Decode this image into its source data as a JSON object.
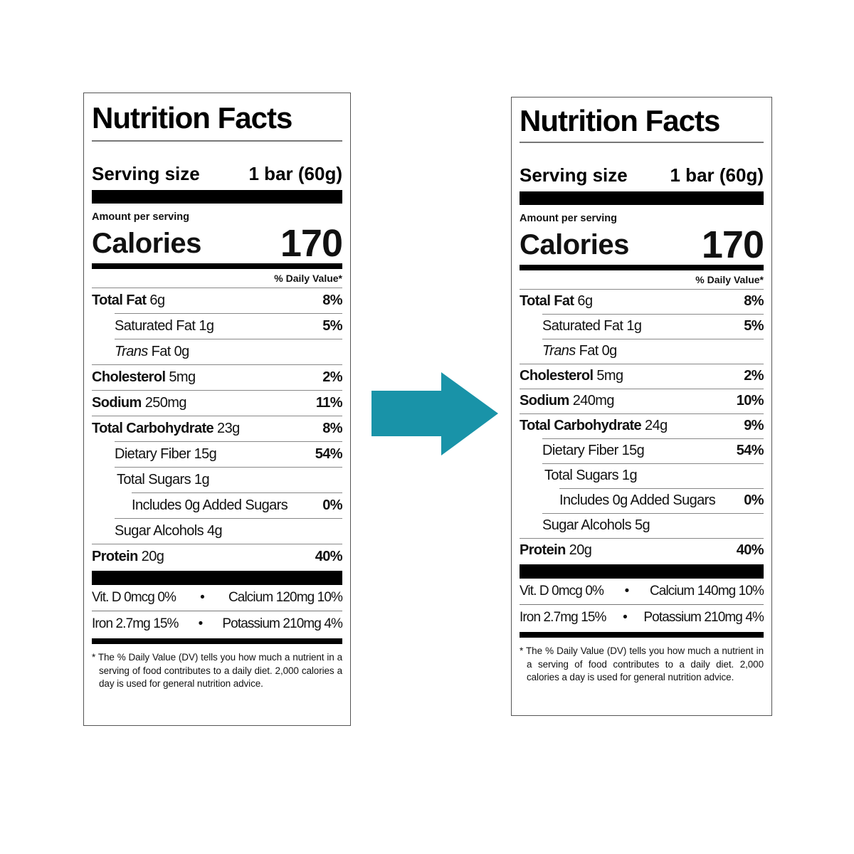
{
  "arrow": {
    "color": "#1993a8"
  },
  "labels": [
    {
      "title": "Nutrition Facts",
      "serving_label": "Serving size",
      "serving_value": "1 bar (60g)",
      "amount_per_serving": "Amount per serving",
      "calories_label": "Calories",
      "calories_value": "170",
      "daily_value_header": "% Daily Value*",
      "nutrients": [
        {
          "name": "Total Fat",
          "amount": "6g",
          "dv": "8%"
        },
        {
          "name": "Saturated Fat 1g",
          "dv": "5%"
        },
        {
          "name_italic": "Trans",
          "name": "Fat 0g",
          "dv": ""
        },
        {
          "name": "Cholesterol",
          "amount": "5mg",
          "dv": "2%"
        },
        {
          "name": "Sodium",
          "amount": "250mg",
          "dv": "11%"
        },
        {
          "name": "Total Carbohydrate",
          "amount": "23g",
          "dv": "8%"
        },
        {
          "name": "Dietary Fiber 15g",
          "dv": "54%"
        },
        {
          "name": "Total Sugars 1g",
          "dv": ""
        },
        {
          "name": "Includes 0g Added Sugars",
          "dv": "0%"
        },
        {
          "name": "Sugar Alcohols 4g",
          "dv": ""
        },
        {
          "name": "Protein",
          "amount": "20g",
          "dv": "40%"
        }
      ],
      "vitamins": [
        {
          "left": "Vit. D 0mcg 0%",
          "sep": "•",
          "right": "Calcium 120mg 10%"
        },
        {
          "left": "Iron 2.7mg 15%",
          "sep": "•",
          "right": "Potassium 210mg 4%"
        }
      ],
      "footnote": "* The % Daily Value (DV) tells you how much a nutrient in a serving of food contributes to a daily diet. 2,000 calories a day is used for general nutrition advice."
    },
    {
      "title": "Nutrition Facts",
      "serving_label": "Serving size",
      "serving_value": "1 bar (60g)",
      "amount_per_serving": "Amount per serving",
      "calories_label": "Calories",
      "calories_value": "170",
      "daily_value_header": "% Daily Value*",
      "nutrients": [
        {
          "name": "Total Fat",
          "amount": "6g",
          "dv": "8%"
        },
        {
          "name": "Saturated Fat 1g",
          "dv": "5%"
        },
        {
          "name_italic": "Trans",
          "name": "Fat 0g",
          "dv": ""
        },
        {
          "name": "Cholesterol",
          "amount": "5mg",
          "dv": "2%"
        },
        {
          "name": "Sodium",
          "amount": "240mg",
          "dv": "10%"
        },
        {
          "name": "Total Carbohydrate",
          "amount": "24g",
          "dv": "9%"
        },
        {
          "name": "Dietary Fiber 15g",
          "dv": "54%"
        },
        {
          "name": "Total Sugars 1g",
          "dv": ""
        },
        {
          "name": "Includes 0g Added Sugars",
          "dv": "0%"
        },
        {
          "name": "Sugar Alcohols 5g",
          "dv": ""
        },
        {
          "name": "Protein",
          "amount": "20g",
          "dv": "40%"
        }
      ],
      "vitamins": [
        {
          "left": "Vit. D 0mcg 0%",
          "sep": "•",
          "right": "Calcium 140mg 10%"
        },
        {
          "left": "Iron 2.7mg 15%",
          "sep": "•",
          "right": "Potassium 210mg 4%"
        }
      ],
      "footnote": "* The % Daily Value (DV) tells you how much a nutrient in a serving of food contributes to a daily diet. 2,000 calories a day is used for general nutrition advice."
    }
  ]
}
